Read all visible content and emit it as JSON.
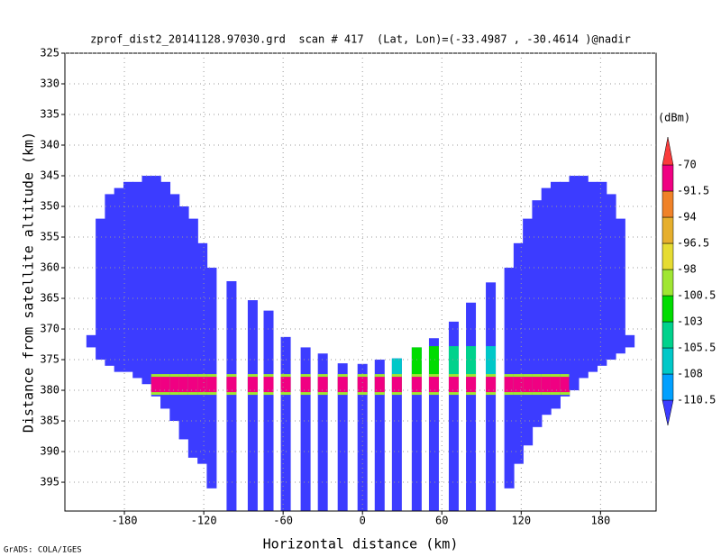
{
  "chart_data": {
    "type": "beam-profile",
    "title": "zprof_dist2_20141128.97030.grd  scan # 417  (Lat, Lon)=(-33.4987 , -30.4614 )@nadir",
    "x_label": "Horizontal distance (km)",
    "y_label": "Distance from satellite altitude (km)",
    "colorbar_label": "(dBm)",
    "credit": "GrADS: COLA/IGES",
    "xlim": [
      -225,
      222
    ],
    "ylim": [
      325,
      399.7
    ],
    "xticks": [
      -180,
      -120,
      -60,
      0,
      60,
      120,
      180
    ],
    "yticks": [
      325,
      330,
      335,
      340,
      345,
      350,
      355,
      360,
      365,
      370,
      375,
      380,
      385,
      390,
      395
    ],
    "grid": true,
    "beam_color": "#3c3cff",
    "levels": [
      -110.5,
      -108,
      -105.5,
      -103,
      -100.5,
      -98,
      -96.5,
      -94,
      -91.5,
      -70
    ],
    "colors": [
      "#3c3cff",
      "#00a0ff",
      "#00c8c8",
      "#00d28c",
      "#00dc00",
      "#a0e632",
      "#e6dc32",
      "#e6af2d",
      "#f08228",
      "#f00082",
      "#fa3c3c"
    ],
    "surface_echo": {
      "top": 377.8,
      "bottom": 380.3
    },
    "beams": [
      {
        "x": -205,
        "top": 371,
        "bottom": 373,
        "echo": null
      },
      {
        "x": -198,
        "top": 352,
        "bottom": 375,
        "echo": null
      },
      {
        "x": -191,
        "top": 348,
        "bottom": 376,
        "echo": null
      },
      {
        "x": -184,
        "top": 347,
        "bottom": 377,
        "echo": null
      },
      {
        "x": -177,
        "top": 346,
        "bottom": 377,
        "echo": null
      },
      {
        "x": -170,
        "top": 346,
        "bottom": 378,
        "echo": null
      },
      {
        "x": -163,
        "top": 345,
        "bottom": 379,
        "echo": null
      },
      {
        "x": -156,
        "top": 345,
        "bottom": 381,
        "echo": -85
      },
      {
        "x": -149,
        "top": 346,
        "bottom": 383,
        "echo": -85
      },
      {
        "x": -142,
        "top": 348,
        "bottom": 385,
        "echo": -85
      },
      {
        "x": -135,
        "top": 350,
        "bottom": 388,
        "echo": -85
      },
      {
        "x": -128,
        "top": 352,
        "bottom": 391,
        "echo": -85
      },
      {
        "x": -121,
        "top": 356,
        "bottom": 392,
        "echo": -85
      },
      {
        "x": -114,
        "top": 360,
        "bottom": 396,
        "echo": -85
      },
      {
        "x": -99,
        "top": 362.2,
        "bottom": 399.7,
        "echo": -85
      },
      {
        "x": -83,
        "top": 365.3,
        "bottom": 399.7,
        "echo": -85
      },
      {
        "x": -71,
        "top": 367,
        "bottom": 399.7,
        "echo": -85
      },
      {
        "x": -58,
        "top": 371.3,
        "bottom": 399.7,
        "echo": -85
      },
      {
        "x": -43,
        "top": 373,
        "bottom": 399.7,
        "echo": -85
      },
      {
        "x": -30,
        "top": 374,
        "bottom": 399.7,
        "echo": -85
      },
      {
        "x": -15,
        "top": 375.6,
        "bottom": 399.7,
        "echo": -85
      },
      {
        "x": 0,
        "top": 375.7,
        "bottom": 399.7,
        "echo": -85
      },
      {
        "x": 13,
        "top": 375,
        "bottom": 399.7,
        "echo": -85
      },
      {
        "x": 26,
        "top": 374.8,
        "bottom": 399.7,
        "echo": -85,
        "clutter": -107
      },
      {
        "x": 41,
        "top": 373,
        "bottom": 399.7,
        "echo": -85,
        "clutter": -101
      },
      {
        "x": 54,
        "top": 371.5,
        "bottom": 399.7,
        "echo": -85,
        "clutter": -101
      },
      {
        "x": 69,
        "top": 368.8,
        "bottom": 399.7,
        "echo": -85,
        "clutter": -104
      },
      {
        "x": 82,
        "top": 365.7,
        "bottom": 399.7,
        "echo": -85,
        "clutter": -104
      },
      {
        "x": 97,
        "top": 362.4,
        "bottom": 399.7,
        "echo": -85,
        "clutter": -106
      },
      {
        "x": 111,
        "top": 360,
        "bottom": 396,
        "echo": -85
      },
      {
        "x": 118,
        "top": 356,
        "bottom": 392,
        "echo": -85
      },
      {
        "x": 125,
        "top": 352,
        "bottom": 389,
        "echo": -85
      },
      {
        "x": 132,
        "top": 349,
        "bottom": 386,
        "echo": -85
      },
      {
        "x": 139,
        "top": 347,
        "bottom": 384,
        "echo": -85
      },
      {
        "x": 146,
        "top": 346,
        "bottom": 383,
        "echo": -85
      },
      {
        "x": 153,
        "top": 346,
        "bottom": 381,
        "echo": -85
      },
      {
        "x": 160,
        "top": 345,
        "bottom": 380,
        "echo": null
      },
      {
        "x": 167,
        "top": 345,
        "bottom": 378,
        "echo": null
      },
      {
        "x": 174,
        "top": 346,
        "bottom": 377,
        "echo": null
      },
      {
        "x": 181,
        "top": 346,
        "bottom": 376,
        "echo": null
      },
      {
        "x": 188,
        "top": 348,
        "bottom": 375,
        "echo": null
      },
      {
        "x": 195,
        "top": 352,
        "bottom": 374,
        "echo": null
      },
      {
        "x": 202,
        "top": 371,
        "bottom": 373,
        "echo": null
      }
    ]
  }
}
